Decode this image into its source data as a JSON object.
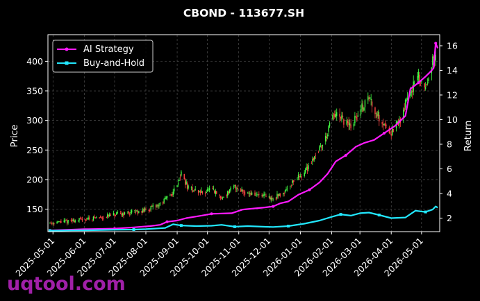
{
  "chart_data": {
    "type": "line",
    "title": "CBOND - 113677.SH",
    "ylabel_left": "Price",
    "ylabel_right": "Return",
    "ylim_left": [
      112,
      445
    ],
    "ylim_right": [
      0.9,
      16.9
    ],
    "yticks_left": [
      150,
      200,
      250,
      300,
      350,
      400
    ],
    "yticks_right": [
      2,
      4,
      6,
      8,
      10,
      12,
      14,
      16
    ],
    "x_range": [
      "2025-04-26",
      "2026-05-19"
    ],
    "xticks": [
      "2025-05-01",
      "2025-06-01",
      "2025-07-01",
      "2025-08-01",
      "2025-09-01",
      "2025-10-01",
      "2025-11-01",
      "2025-12-01",
      "2026-01-01",
      "2026-02-01",
      "2026-03-01",
      "2026-04-01",
      "2026-05-01"
    ],
    "grid": true,
    "legend_position": "top-left",
    "price_series": {
      "kind": "candlestick",
      "up_color": "#44ff44",
      "down_color": "#ff4444",
      "anchors": [
        [
          "2025-04-28",
          127
        ],
        [
          "2025-05-15",
          129
        ],
        [
          "2025-06-01",
          133
        ],
        [
          "2025-06-20",
          137
        ],
        [
          "2025-07-01",
          140
        ],
        [
          "2025-07-15",
          144
        ],
        [
          "2025-08-01",
          148
        ],
        [
          "2025-08-15",
          158
        ],
        [
          "2025-08-28",
          178
        ],
        [
          "2025-09-05",
          210
        ],
        [
          "2025-09-12",
          185
        ],
        [
          "2025-09-25",
          178
        ],
        [
          "2025-10-05",
          183
        ],
        [
          "2025-10-15",
          168
        ],
        [
          "2025-10-28",
          188
        ],
        [
          "2025-11-10",
          177
        ],
        [
          "2025-11-25",
          172
        ],
        [
          "2025-12-05",
          167
        ],
        [
          "2025-12-15",
          178
        ],
        [
          "2025-12-25",
          198
        ],
        [
          "2026-01-05",
          212
        ],
        [
          "2026-01-15",
          240
        ],
        [
          "2026-01-25",
          265
        ],
        [
          "2026-02-03",
          310
        ],
        [
          "2026-02-12",
          300
        ],
        [
          "2026-02-20",
          290
        ],
        [
          "2026-03-01",
          315
        ],
        [
          "2026-03-10",
          340
        ],
        [
          "2026-03-20",
          305
        ],
        [
          "2026-04-01",
          280
        ],
        [
          "2026-04-10",
          300
        ],
        [
          "2026-04-18",
          345
        ],
        [
          "2026-04-28",
          372
        ],
        [
          "2026-05-05",
          355
        ],
        [
          "2026-05-10",
          395
        ],
        [
          "2026-05-15",
          405
        ]
      ]
    },
    "series": [
      {
        "name": "AI Strategy",
        "color": "#ff1aff",
        "marker": "circle",
        "points": [
          [
            "2025-04-28",
            1.0
          ],
          [
            "2025-05-15",
            1.05
          ],
          [
            "2025-06-01",
            1.1
          ],
          [
            "2025-06-15",
            1.12
          ],
          [
            "2025-07-01",
            1.15
          ],
          [
            "2025-07-20",
            1.25
          ],
          [
            "2025-08-05",
            1.35
          ],
          [
            "2025-08-15",
            1.45
          ],
          [
            "2025-08-22",
            1.7
          ],
          [
            "2025-09-01",
            1.8
          ],
          [
            "2025-09-10",
            2.0
          ],
          [
            "2025-09-25",
            2.2
          ],
          [
            "2025-10-05",
            2.35
          ],
          [
            "2025-10-25",
            2.4
          ],
          [
            "2025-11-05",
            2.7
          ],
          [
            "2025-11-25",
            2.85
          ],
          [
            "2025-12-05",
            2.95
          ],
          [
            "2025-12-12",
            3.2
          ],
          [
            "2025-12-20",
            3.35
          ],
          [
            "2025-12-30",
            3.9
          ],
          [
            "2026-01-10",
            4.3
          ],
          [
            "2026-01-20",
            4.9
          ],
          [
            "2026-01-28",
            5.6
          ],
          [
            "2026-02-05",
            6.6
          ],
          [
            "2026-02-15",
            7.1
          ],
          [
            "2026-02-25",
            7.8
          ],
          [
            "2026-03-05",
            8.1
          ],
          [
            "2026-03-15",
            8.35
          ],
          [
            "2026-03-25",
            8.9
          ],
          [
            "2026-04-05",
            9.5
          ],
          [
            "2026-04-15",
            10.3
          ],
          [
            "2026-04-20",
            12.5
          ],
          [
            "2026-04-28",
            13.0
          ],
          [
            "2026-05-05",
            13.5
          ],
          [
            "2026-05-10",
            13.9
          ],
          [
            "2026-05-13",
            14.2
          ],
          [
            "2026-05-15",
            16.2
          ],
          [
            "2026-05-17",
            15.8
          ]
        ]
      },
      {
        "name": "Buy-and-Hold",
        "color": "#22e8ff",
        "marker": "square",
        "points": [
          [
            "2025-04-28",
            0.98
          ],
          [
            "2025-05-20",
            1.0
          ],
          [
            "2025-06-10",
            1.02
          ],
          [
            "2025-07-01",
            1.05
          ],
          [
            "2025-07-20",
            1.07
          ],
          [
            "2025-08-01",
            1.1
          ],
          [
            "2025-08-20",
            1.2
          ],
          [
            "2025-08-28",
            1.5
          ],
          [
            "2025-09-05",
            1.4
          ],
          [
            "2025-09-20",
            1.35
          ],
          [
            "2025-10-05",
            1.38
          ],
          [
            "2025-10-15",
            1.45
          ],
          [
            "2025-10-28",
            1.3
          ],
          [
            "2025-11-10",
            1.35
          ],
          [
            "2025-11-25",
            1.3
          ],
          [
            "2025-12-05",
            1.28
          ],
          [
            "2025-12-20",
            1.35
          ],
          [
            "2026-01-05",
            1.55
          ],
          [
            "2026-01-20",
            1.8
          ],
          [
            "2026-02-01",
            2.1
          ],
          [
            "2026-02-10",
            2.3
          ],
          [
            "2026-02-20",
            2.2
          ],
          [
            "2026-03-01",
            2.4
          ],
          [
            "2026-03-10",
            2.45
          ],
          [
            "2026-03-20",
            2.25
          ],
          [
            "2026-04-01",
            2.0
          ],
          [
            "2026-04-15",
            2.05
          ],
          [
            "2026-04-25",
            2.6
          ],
          [
            "2026-05-05",
            2.5
          ],
          [
            "2026-05-12",
            2.7
          ],
          [
            "2026-05-15",
            2.95
          ],
          [
            "2026-05-17",
            2.85
          ]
        ]
      }
    ]
  },
  "watermark": "uqtool.com"
}
